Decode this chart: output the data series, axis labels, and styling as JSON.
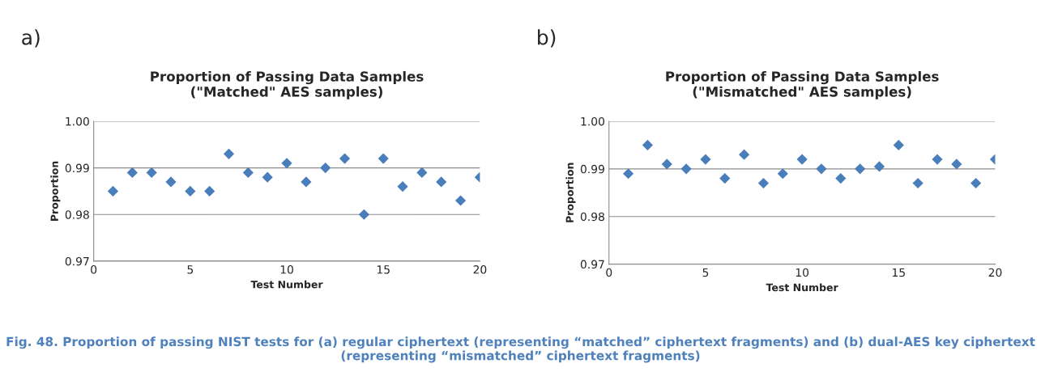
{
  "chart_data": [
    {
      "type": "scatter",
      "title": "Proportion of Passing Data Samples\n(\"Matched\" AES samples)",
      "xlabel": "Test Number",
      "ylabel": "Proportion",
      "annotations": [
        "a)"
      ],
      "x": [
        1,
        2,
        3,
        4,
        5,
        6,
        7,
        8,
        9,
        10,
        11,
        12,
        13,
        14,
        15,
        16,
        17,
        18,
        19,
        20
      ],
      "series": [
        {
          "color": "#4a7ebb",
          "values": [
            0.985,
            0.989,
            0.989,
            0.987,
            0.985,
            0.985,
            0.993,
            0.989,
            0.988,
            0.991,
            0.987,
            0.99,
            0.992,
            0.98,
            0.992,
            0.986,
            0.989,
            0.987,
            0.983,
            0.988
          ]
        }
      ],
      "xlim": [
        0,
        20
      ],
      "xticks": [
        0,
        5,
        10,
        15,
        20
      ],
      "ylim": [
        0.97,
        1.0
      ],
      "yticks": [
        {
          "value": 0.97,
          "label": "0.97"
        },
        {
          "value": 0.98,
          "label": "0.98"
        },
        {
          "value": 0.99,
          "label": "0.99"
        },
        {
          "value": 1.0,
          "label": "1.00"
        }
      ],
      "grid": "y",
      "marker": "diamond",
      "legend": false
    },
    {
      "type": "scatter",
      "title": "Proportion of Passing Data Samples\n(\"Mismatched\" AES samples)",
      "xlabel": "Test Number",
      "ylabel": "Proportion",
      "annotations": [
        "b)",
        "Fig. 48. Proportion of passing NIST tests for (a) regular ciphertext (representing “matched” ciphertext fragments) and (b) dual-AES key ciphertext (representing “mismatched” ciphertext fragments)"
      ],
      "x": [
        1,
        2,
        3,
        4,
        5,
        6,
        7,
        8,
        9,
        10,
        11,
        12,
        13,
        14,
        15,
        16,
        17,
        18,
        19,
        20
      ],
      "series": [
        {
          "color": "#4a7ebb",
          "values": [
            0.989,
            0.995,
            0.991,
            0.99,
            0.992,
            0.988,
            0.993,
            0.987,
            0.989,
            0.992,
            0.99,
            0.988,
            0.99,
            0.9905,
            0.995,
            0.987,
            0.992,
            0.991,
            0.987,
            0.992
          ]
        }
      ],
      "xlim": [
        0,
        20
      ],
      "xticks": [
        0,
        5,
        10,
        15,
        20
      ],
      "ylim": [
        0.97,
        1.0
      ],
      "yticks": [
        {
          "value": 0.97,
          "label": "0.97"
        },
        {
          "value": 0.98,
          "label": "0.98"
        },
        {
          "value": 0.99,
          "label": "0.99"
        },
        {
          "value": 1.0,
          "label": "1.00"
        }
      ],
      "grid": "y",
      "marker": "diamond",
      "legend": false
    }
  ]
}
